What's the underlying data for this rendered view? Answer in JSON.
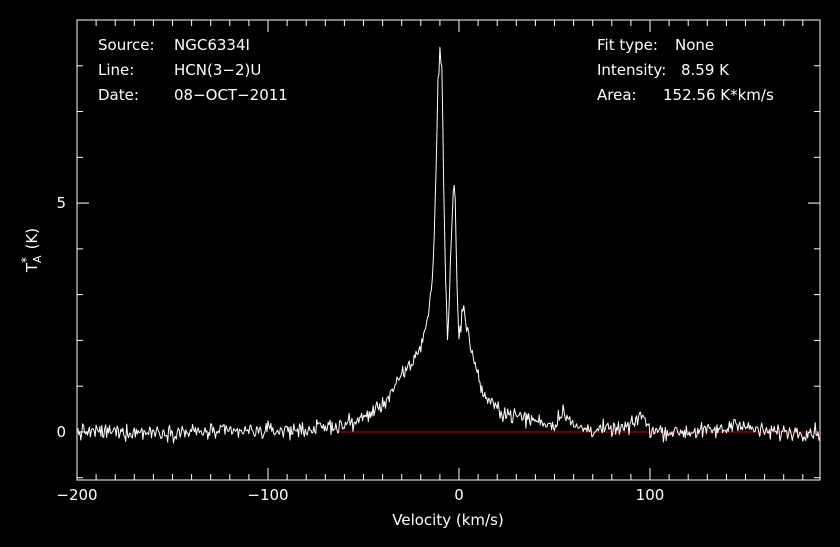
{
  "chart_data": {
    "type": "line",
    "xlabel": "Velocity (km/s)",
    "ylabel": {
      "symbol": "T",
      "superscript": "*",
      "subscript": "A",
      "unit": "(K)"
    },
    "xlim": [
      -200,
      189
    ],
    "ylim": [
      -1.05,
      9.0
    ],
    "x_ticks": [
      -200,
      -100,
      0,
      100
    ],
    "x_tick_labels": [
      "−200",
      "−100",
      "0",
      "100"
    ],
    "y_ticks": [
      0,
      5
    ],
    "y_tick_labels": [
      "0",
      "5"
    ],
    "info_left": [
      {
        "key": "Source:",
        "value": "NGC6334I"
      },
      {
        "key": "Line:",
        "value": "HCN(3−2)U"
      },
      {
        "key": "Date:",
        "value": "08−OCT−2011"
      }
    ],
    "info_right": [
      {
        "key": "Fit type:",
        "value": "None"
      },
      {
        "key": "Intensity:",
        "value": "8.59 K"
      },
      {
        "key": "Area:",
        "value": "152.56 K*km/s"
      }
    ],
    "baseline": {
      "x_start": -62,
      "x_end": 189,
      "y": 0,
      "color": "#cc0000"
    },
    "spectrum_color": "#ffffff",
    "axis_color": "#ffffff",
    "noise_rms": 0.12,
    "series": [
      {
        "x": [
          -200,
          -160,
          -120,
          -80,
          -60,
          -50,
          -40,
          -35,
          -30,
          -25,
          -22,
          -20,
          -18,
          -16,
          -14,
          -13,
          -12,
          -11,
          -10,
          -9,
          -8,
          -7,
          -6,
          -5,
          -4,
          -3,
          -2,
          -1,
          0,
          1,
          2,
          3,
          4,
          6,
          8,
          10,
          12,
          15,
          20,
          25,
          30,
          35,
          40,
          45,
          50,
          55,
          60,
          70,
          80,
          90,
          95,
          100,
          110,
          120,
          140,
          145,
          150,
          160,
          170,
          189
        ],
        "y": [
          0.0,
          0.0,
          0.0,
          0.05,
          0.15,
          0.3,
          0.6,
          0.9,
          1.2,
          1.5,
          1.7,
          1.9,
          2.2,
          2.6,
          3.3,
          4.2,
          5.8,
          7.6,
          8.3,
          7.9,
          5.5,
          3.3,
          2.0,
          3.0,
          4.3,
          5.4,
          5.2,
          3.0,
          2.0,
          2.4,
          2.8,
          2.6,
          2.2,
          1.9,
          1.6,
          1.2,
          0.9,
          0.7,
          0.5,
          0.4,
          0.35,
          0.3,
          0.25,
          0.2,
          0.15,
          0.5,
          0.1,
          0.05,
          0.05,
          0.1,
          0.4,
          0.05,
          0.0,
          0.0,
          0.05,
          0.25,
          0.1,
          0.0,
          0.0,
          0.0
        ]
      }
    ]
  }
}
